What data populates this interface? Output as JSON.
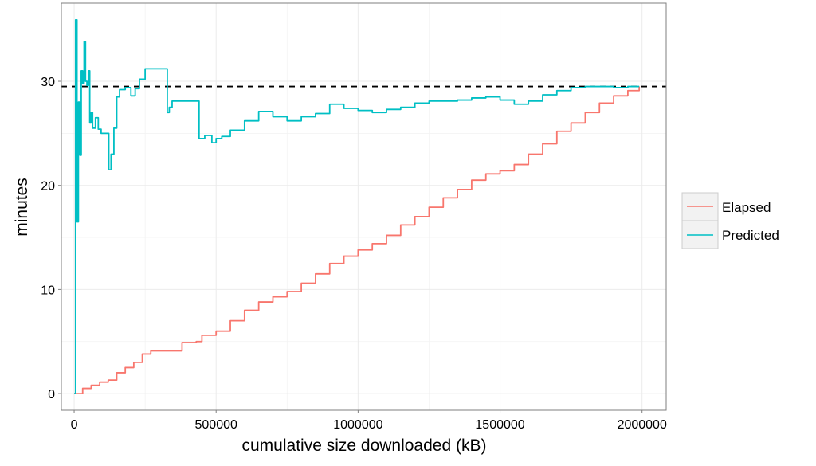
{
  "chart_data": {
    "type": "line",
    "title": "",
    "xlabel": "cumulative size downloaded (kB)",
    "ylabel": "minutes",
    "xlim": [
      -45000,
      2085000
    ],
    "ylim": [
      -1.6,
      37.5
    ],
    "x_ticks": [
      0,
      500000,
      1000000,
      1500000,
      2000000
    ],
    "x_tick_labels": [
      "0",
      "500000",
      "1000000",
      "1500000",
      "2000000"
    ],
    "y_ticks": [
      0,
      10,
      20,
      30
    ],
    "y_tick_labels": [
      "0",
      "10",
      "20",
      "30"
    ],
    "grid": true,
    "legend_position": "right",
    "reference_line": {
      "y": 29.5,
      "style": "dashed",
      "color": "#000000"
    },
    "series": [
      {
        "name": "Elapsed",
        "color": "#F8766D",
        "points": [
          [
            0,
            0
          ],
          [
            30000,
            0.5
          ],
          [
            60000,
            0.8
          ],
          [
            90000,
            1.1
          ],
          [
            120000,
            1.3
          ],
          [
            150000,
            2.0
          ],
          [
            180000,
            2.5
          ],
          [
            210000,
            3.0
          ],
          [
            240000,
            3.8
          ],
          [
            270000,
            4.1
          ],
          [
            330000,
            4.1
          ],
          [
            380000,
            4.9
          ],
          [
            430000,
            5.0
          ],
          [
            450000,
            5.6
          ],
          [
            500000,
            6.0
          ],
          [
            550000,
            7.0
          ],
          [
            600000,
            8.0
          ],
          [
            650000,
            8.8
          ],
          [
            700000,
            9.3
          ],
          [
            750000,
            9.8
          ],
          [
            800000,
            10.6
          ],
          [
            850000,
            11.5
          ],
          [
            900000,
            12.5
          ],
          [
            950000,
            13.2
          ],
          [
            1000000,
            13.8
          ],
          [
            1050000,
            14.4
          ],
          [
            1100000,
            15.2
          ],
          [
            1150000,
            16.2
          ],
          [
            1200000,
            17.0
          ],
          [
            1250000,
            17.9
          ],
          [
            1300000,
            18.8
          ],
          [
            1350000,
            19.6
          ],
          [
            1400000,
            20.5
          ],
          [
            1450000,
            21.1
          ],
          [
            1500000,
            21.4
          ],
          [
            1550000,
            22.0
          ],
          [
            1600000,
            23.0
          ],
          [
            1650000,
            24.0
          ],
          [
            1700000,
            25.2
          ],
          [
            1750000,
            26.0
          ],
          [
            1800000,
            27.0
          ],
          [
            1850000,
            27.9
          ],
          [
            1900000,
            28.6
          ],
          [
            1950000,
            29.1
          ],
          [
            1990000,
            29.5
          ]
        ]
      },
      {
        "name": "Predicted",
        "color": "#00BFC4",
        "points": [
          [
            0,
            0
          ],
          [
            5000,
            35.9
          ],
          [
            10000,
            16.5
          ],
          [
            15000,
            28.0
          ],
          [
            20000,
            22.9
          ],
          [
            25000,
            31.0
          ],
          [
            30000,
            29.8
          ],
          [
            35000,
            33.8
          ],
          [
            40000,
            30.0
          ],
          [
            45000,
            29.6
          ],
          [
            50000,
            31.0
          ],
          [
            55000,
            26.0
          ],
          [
            60000,
            27.0
          ],
          [
            65000,
            25.5
          ],
          [
            75000,
            26.5
          ],
          [
            85000,
            25.4
          ],
          [
            95000,
            25.0
          ],
          [
            120000,
            25.0
          ],
          [
            122000,
            21.5
          ],
          [
            130000,
            23.0
          ],
          [
            140000,
            25.5
          ],
          [
            150000,
            28.5
          ],
          [
            160000,
            29.2
          ],
          [
            180000,
            29.4
          ],
          [
            200000,
            28.6
          ],
          [
            215000,
            29.3
          ],
          [
            230000,
            30.2
          ],
          [
            250000,
            31.2
          ],
          [
            300000,
            31.2
          ],
          [
            325000,
            31.2
          ],
          [
            328000,
            27.0
          ],
          [
            335000,
            27.5
          ],
          [
            345000,
            28.1
          ],
          [
            360000,
            28.1
          ],
          [
            420000,
            28.1
          ],
          [
            438000,
            28.1
          ],
          [
            440000,
            24.5
          ],
          [
            460000,
            24.8
          ],
          [
            485000,
            24.1
          ],
          [
            500000,
            24.5
          ],
          [
            520000,
            24.7
          ],
          [
            550000,
            25.3
          ],
          [
            600000,
            26.2
          ],
          [
            650000,
            27.1
          ],
          [
            700000,
            26.6
          ],
          [
            750000,
            26.2
          ],
          [
            800000,
            26.6
          ],
          [
            850000,
            26.9
          ],
          [
            900000,
            27.8
          ],
          [
            950000,
            27.4
          ],
          [
            1000000,
            27.2
          ],
          [
            1050000,
            27.0
          ],
          [
            1100000,
            27.3
          ],
          [
            1150000,
            27.5
          ],
          [
            1200000,
            27.9
          ],
          [
            1250000,
            28.1
          ],
          [
            1300000,
            28.1
          ],
          [
            1350000,
            28.2
          ],
          [
            1400000,
            28.4
          ],
          [
            1450000,
            28.5
          ],
          [
            1500000,
            28.2
          ],
          [
            1550000,
            27.8
          ],
          [
            1600000,
            28.1
          ],
          [
            1650000,
            28.7
          ],
          [
            1700000,
            29.1
          ],
          [
            1750000,
            29.4
          ],
          [
            1800000,
            29.5
          ],
          [
            1850000,
            29.5
          ],
          [
            1900000,
            29.4
          ],
          [
            1950000,
            29.5
          ],
          [
            1990000,
            29.5
          ]
        ]
      }
    ]
  }
}
